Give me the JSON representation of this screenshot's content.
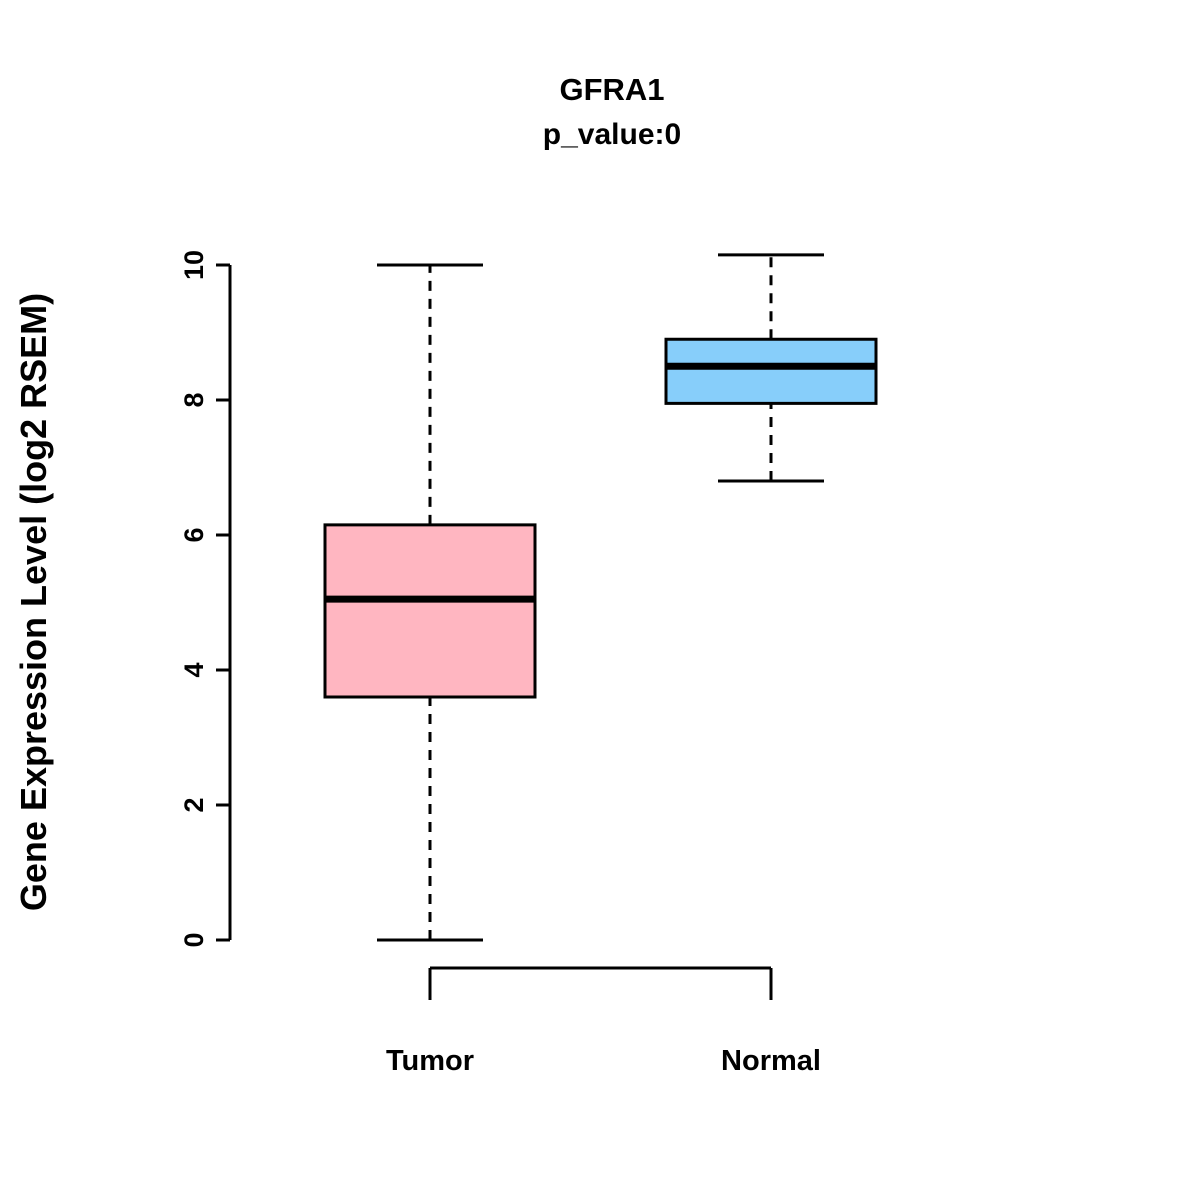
{
  "chart_data": {
    "type": "boxplot",
    "title": "GFRA1",
    "subtitle": "p_value:0",
    "ylabel": "Gene Expression Level (log2 RSEM)",
    "xlabel": "",
    "ylim": [
      0,
      10
    ],
    "yticks": [
      0,
      2,
      4,
      6,
      8,
      10
    ],
    "grid": false,
    "categories": [
      "Tumor",
      "Normal"
    ],
    "series": [
      {
        "name": "Tumor",
        "color": "#FFB6C1",
        "whisker_low": 0.0,
        "q1": 3.6,
        "median": 5.05,
        "q3": 6.15,
        "whisker_high": 10.0
      },
      {
        "name": "Normal",
        "color": "#87CEFA",
        "whisker_low": 6.8,
        "q1": 7.95,
        "median": 8.5,
        "q3": 8.9,
        "whisker_high": 10.15
      }
    ]
  }
}
